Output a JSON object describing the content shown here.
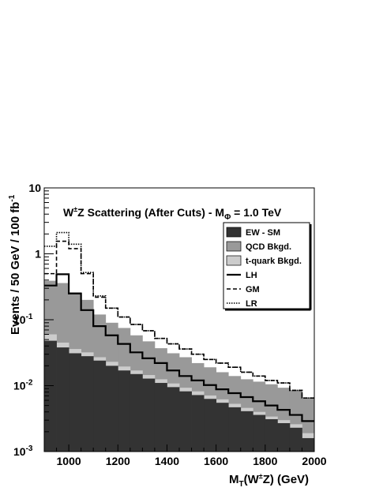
{
  "chart_data": {
    "type": "area",
    "title": "W±Z Scattering (After Cuts) - MΦ = 1.0 TeV",
    "title_parts": {
      "w": "W",
      "pm": "±",
      "rest1": "Z Scattering (After Cuts) - M",
      "phi": "Φ",
      "rest2": " = 1.0 TeV"
    },
    "xlabel": "MT(W±Z) (GeV)",
    "xlabel_parts": {
      "m": "M",
      "t": "T",
      "open": "(W",
      "pm": "±",
      "close": "Z) (GeV)"
    },
    "ylabel": "Events / 50 GeV / 100 fb-1",
    "ylabel_parts": {
      "main": "Events / 50 GeV / 100 fb",
      "sup": "-1"
    },
    "xlim": [
      900,
      2000
    ],
    "ylim": [
      0.001,
      10
    ],
    "yscale": "log",
    "bin_width": 50,
    "x_ticks": [
      {
        "value": 1000,
        "label": "1000"
      },
      {
        "value": 1200,
        "label": "1200"
      },
      {
        "value": 1400,
        "label": "1400"
      },
      {
        "value": 1600,
        "label": "1600"
      },
      {
        "value": 1800,
        "label": "1800"
      },
      {
        "value": 2000,
        "label": "2000"
      }
    ],
    "y_ticks": [
      {
        "value": 10,
        "base": "10",
        "exp": ""
      },
      {
        "value": 1,
        "base": "1",
        "exp": ""
      },
      {
        "value": 0.1,
        "base": "10",
        "exp": "-1"
      },
      {
        "value": 0.01,
        "base": "10",
        "exp": "-2"
      },
      {
        "value": 0.001,
        "base": "10",
        "exp": "-3"
      }
    ],
    "legend_position": "top-right",
    "bin_edges": [
      900,
      950,
      1000,
      1050,
      1100,
      1150,
      1200,
      1250,
      1300,
      1350,
      1400,
      1450,
      1500,
      1550,
      1600,
      1650,
      1700,
      1750,
      1800,
      1850,
      1900,
      1950,
      2000
    ],
    "series": [
      {
        "name": "EW - SM",
        "style": "fill",
        "color": "#333333",
        "values": [
          0.048,
          0.038,
          0.031,
          0.028,
          0.024,
          0.02,
          0.017,
          0.015,
          0.0128,
          0.011,
          0.0095,
          0.0082,
          0.0072,
          0.0063,
          0.0055,
          0.0047,
          0.0041,
          0.0036,
          0.0031,
          0.0027,
          0.0023,
          0.0016
        ]
      },
      {
        "name": "QCD Bkgd.",
        "style": "fill",
        "color": "#999999",
        "values": [
          0.39,
          0.36,
          0.26,
          0.2,
          0.12,
          0.09,
          0.075,
          0.058,
          0.047,
          0.037,
          0.031,
          0.027,
          0.022,
          0.019,
          0.016,
          0.014,
          0.0125,
          0.0115,
          0.0105,
          0.0093,
          0.0085,
          0.0066
        ]
      },
      {
        "name": "t-quark Bkgd.",
        "style": "fill",
        "color": "#cccccc",
        "values": [
          0.06,
          0.045,
          0.036,
          0.032,
          0.027,
          0.023,
          0.0195,
          0.017,
          0.0145,
          0.0125,
          0.0108,
          0.0093,
          0.0082,
          0.0071,
          0.0062,
          0.0053,
          0.0046,
          0.004,
          0.0034,
          0.003,
          0.0026,
          0.0019
        ]
      },
      {
        "name": "LH",
        "style": "solid",
        "color": "#000000",
        "values": [
          0.33,
          0.49,
          0.25,
          0.14,
          0.08,
          0.058,
          0.043,
          0.032,
          0.026,
          0.022,
          0.017,
          0.014,
          0.012,
          0.0102,
          0.0088,
          0.0077,
          0.0067,
          0.0058,
          0.005,
          0.0043,
          0.0036,
          0.0029
        ]
      },
      {
        "name": "GM",
        "style": "dashed",
        "color": "#000000",
        "values": [
          0.5,
          1.55,
          1.2,
          0.5,
          0.22,
          0.15,
          0.11,
          0.085,
          0.068,
          0.052,
          0.043,
          0.036,
          0.03,
          0.025,
          0.022,
          0.019,
          0.016,
          0.014,
          0.012,
          0.011,
          0.0085,
          0.0065
        ]
      },
      {
        "name": "LR",
        "style": "dotted",
        "color": "#000000",
        "values": [
          1.3,
          2.1,
          1.4,
          0.52,
          0.23,
          0.15,
          0.11,
          0.085,
          0.068,
          0.052,
          0.043,
          0.036,
          0.03,
          0.025,
          0.022,
          0.019,
          0.016,
          0.014,
          0.012,
          0.011,
          0.0085,
          0.0065
        ]
      }
    ]
  }
}
